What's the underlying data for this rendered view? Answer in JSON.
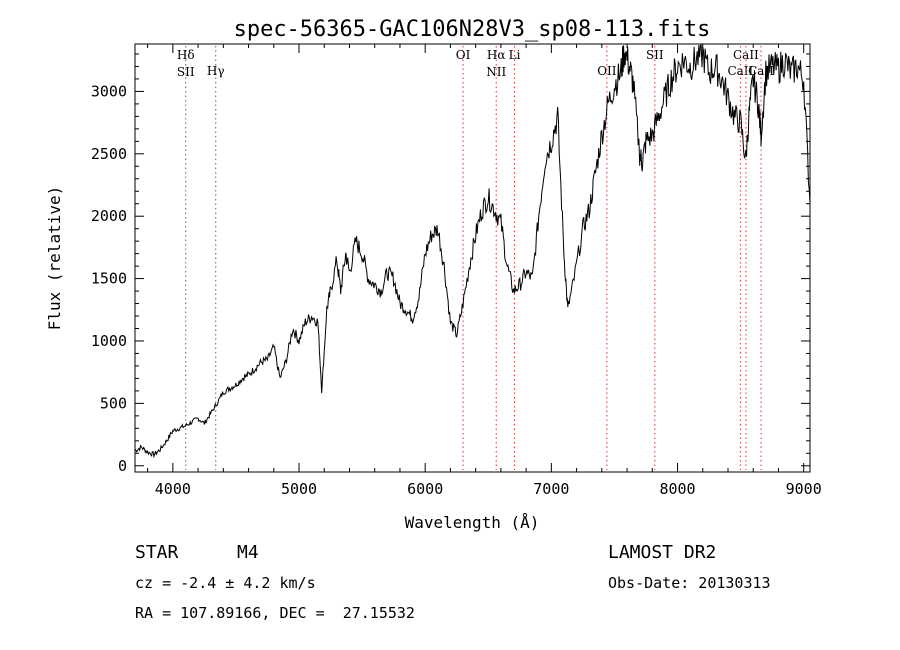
{
  "chart_data": {
    "type": "line",
    "title": "spec-56365-GAC106N28V3_sp08-113.fits",
    "xlabel": "Wavelength (Å)",
    "ylabel": "Flux (relative)",
    "xlim": [
      3700,
      9050
    ],
    "ylim": [
      -50,
      3380
    ],
    "xticks": [
      4000,
      5000,
      6000,
      7000,
      8000,
      9000
    ],
    "yticks": [
      0,
      500,
      1000,
      1500,
      2000,
      2500,
      3000
    ],
    "grid": false,
    "line_color": "#000000",
    "marker_color": "#e03030",
    "series": [
      {
        "points": [
          [
            3700,
            120
          ],
          [
            3750,
            150
          ],
          [
            3800,
            110
          ],
          [
            3850,
            90
          ],
          [
            3900,
            130
          ],
          [
            3950,
            200
          ],
          [
            4000,
            280
          ],
          [
            4050,
            300
          ],
          [
            4100,
            320
          ],
          [
            4150,
            350
          ],
          [
            4200,
            380
          ],
          [
            4250,
            340
          ],
          [
            4300,
            420
          ],
          [
            4350,
            500
          ],
          [
            4400,
            590
          ],
          [
            4450,
            620
          ],
          [
            4500,
            650
          ],
          [
            4550,
            700
          ],
          [
            4600,
            730
          ],
          [
            4650,
            780
          ],
          [
            4700,
            830
          ],
          [
            4750,
            850
          ],
          [
            4800,
            950
          ],
          [
            4850,
            700
          ],
          [
            4900,
            850
          ],
          [
            4950,
            1100
          ],
          [
            5000,
            1000
          ],
          [
            5050,
            1150
          ],
          [
            5100,
            1200
          ],
          [
            5150,
            1150
          ],
          [
            5180,
            600
          ],
          [
            5220,
            1250
          ],
          [
            5250,
            1400
          ],
          [
            5300,
            1650
          ],
          [
            5330,
            1400
          ],
          [
            5370,
            1700
          ],
          [
            5400,
            1550
          ],
          [
            5450,
            1800
          ],
          [
            5500,
            1700
          ],
          [
            5550,
            1500
          ],
          [
            5600,
            1450
          ],
          [
            5650,
            1400
          ],
          [
            5700,
            1550
          ],
          [
            5750,
            1500
          ],
          [
            5800,
            1300
          ],
          [
            5850,
            1250
          ],
          [
            5900,
            1180
          ],
          [
            5950,
            1350
          ],
          [
            6000,
            1700
          ],
          [
            6050,
            1850
          ],
          [
            6100,
            1900
          ],
          [
            6150,
            1600
          ],
          [
            6200,
            1150
          ],
          [
            6250,
            1050
          ],
          [
            6300,
            1300
          ],
          [
            6350,
            1600
          ],
          [
            6400,
            1850
          ],
          [
            6450,
            2050
          ],
          [
            6500,
            2150
          ],
          [
            6550,
            2050
          ],
          [
            6600,
            1950
          ],
          [
            6650,
            1600
          ],
          [
            6700,
            1400
          ],
          [
            6750,
            1450
          ],
          [
            6800,
            1550
          ],
          [
            6850,
            1500
          ],
          [
            6900,
            2000
          ],
          [
            6950,
            2450
          ],
          [
            7000,
            2600
          ],
          [
            7050,
            2800
          ],
          [
            7100,
            1700
          ],
          [
            7130,
            1250
          ],
          [
            7180,
            1500
          ],
          [
            7250,
            1900
          ],
          [
            7300,
            2050
          ],
          [
            7350,
            2350
          ],
          [
            7400,
            2650
          ],
          [
            7450,
            2900
          ],
          [
            7500,
            3050
          ],
          [
            7550,
            3150
          ],
          [
            7580,
            3330
          ],
          [
            7620,
            3200
          ],
          [
            7650,
            3050
          ],
          [
            7700,
            2500
          ],
          [
            7720,
            2430
          ],
          [
            7750,
            2600
          ],
          [
            7800,
            2650
          ],
          [
            7850,
            2800
          ],
          [
            7900,
            2950
          ],
          [
            7950,
            3100
          ],
          [
            8000,
            3200
          ],
          [
            8050,
            3250
          ],
          [
            8100,
            3200
          ],
          [
            8150,
            3260
          ],
          [
            8200,
            3300
          ],
          [
            8250,
            3150
          ],
          [
            8300,
            3200
          ],
          [
            8350,
            3100
          ],
          [
            8400,
            2950
          ],
          [
            8450,
            2800
          ],
          [
            8500,
            2750
          ],
          [
            8540,
            2450
          ],
          [
            8570,
            2850
          ],
          [
            8600,
            3100
          ],
          [
            8640,
            2900
          ],
          [
            8662,
            2650
          ],
          [
            8700,
            3150
          ],
          [
            8750,
            3200
          ],
          [
            8800,
            3180
          ],
          [
            8850,
            3250
          ],
          [
            8900,
            3150
          ],
          [
            8950,
            3200
          ],
          [
            9000,
            3100
          ],
          [
            9050,
            2100
          ]
        ]
      }
    ],
    "line_markers": [
      {
        "wave": 4102,
        "labels": [
          "Hδ",
          "SII"
        ]
      },
      {
        "wave": 4340,
        "labels": [
          "Hγ"
        ]
      },
      {
        "wave": 6300,
        "labels": [
          "OI"
        ]
      },
      {
        "wave": 6563,
        "labels": [
          "Hα",
          "NII"
        ]
      },
      {
        "wave": 6708,
        "labels": [
          "Li"
        ]
      },
      {
        "wave": 7440,
        "labels": [
          "OII"
        ]
      },
      {
        "wave": 7820,
        "labels": [
          "SII"
        ]
      },
      {
        "wave": 8498,
        "labels": [
          "CaII"
        ]
      },
      {
        "wave": 8542,
        "labels": [
          "CaII"
        ]
      },
      {
        "wave": 8662,
        "labels": [
          "CaII"
        ]
      }
    ]
  },
  "info": {
    "class_label": "STAR",
    "subclass": "M4",
    "survey": "LAMOST DR2",
    "cz": "cz = -2.4 ± 4.2 km/s",
    "obs_date": "Obs-Date: 20130313",
    "coords": "RA = 107.89166, DEC =  27.15532"
  }
}
